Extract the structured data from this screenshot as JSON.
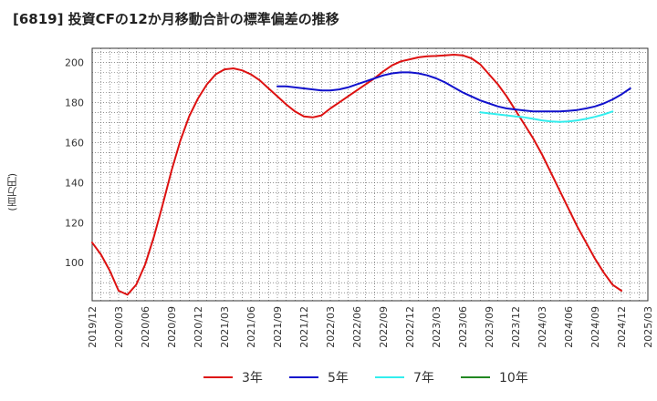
{
  "chart_data": {
    "type": "line",
    "title": "[6819]  投資CFの12か月移動合計の標準偏差の推移",
    "ylabel": "(百万円)",
    "xlabel": "",
    "ylim": [
      81,
      207
    ],
    "yticks": [
      100,
      120,
      140,
      160,
      180,
      200
    ],
    "x_ticks": [
      "2019/12",
      "2020/03",
      "2020/06",
      "2020/09",
      "2020/12",
      "2021/03",
      "2021/06",
      "2021/09",
      "2021/12",
      "2022/03",
      "2022/06",
      "2022/09",
      "2022/12",
      "2023/03",
      "2023/06",
      "2023/09",
      "2023/12",
      "2024/03",
      "2024/06",
      "2024/09",
      "2024/12",
      "2025/03"
    ],
    "grid": true,
    "legend_position": "bottom",
    "series": [
      {
        "name": "3年",
        "color": "#dd1111",
        "start": "2019/12",
        "values": [
          110,
          104,
          96,
          86,
          84,
          89,
          99,
          113,
          129,
          146,
          161,
          173,
          182,
          189,
          194,
          196.5,
          197,
          196,
          194,
          191,
          187,
          183,
          179,
          175.5,
          173,
          172.5,
          173.5,
          177,
          180,
          183,
          186,
          189,
          192,
          195.5,
          198.5,
          200.5,
          201.5,
          202.5,
          203,
          203.2,
          203.5,
          203.8,
          203.5,
          202,
          199,
          194,
          189,
          183,
          176,
          169,
          162,
          154,
          145,
          136,
          127,
          118,
          110,
          102,
          95,
          89,
          86
        ]
      },
      {
        "name": "5年",
        "color": "#1111cc",
        "start": "2021/09",
        "values": [
          188,
          188,
          187.5,
          187,
          186.5,
          186,
          186,
          186.5,
          187.5,
          189,
          190.5,
          192,
          193.5,
          194.5,
          195,
          195,
          194.5,
          193.5,
          192,
          190,
          187.5,
          185,
          183,
          181,
          179.5,
          178,
          177,
          176.5,
          176,
          175.5,
          175.5,
          175.5,
          175.5,
          175.8,
          176.2,
          177,
          178,
          179.5,
          181.5,
          184,
          187
        ]
      },
      {
        "name": "7年",
        "color": "#33eeee",
        "start": "2023/08",
        "values": [
          175,
          174.5,
          174,
          173.5,
          173,
          172.5,
          171.8,
          171,
          170.5,
          170.3,
          170.5,
          171,
          171.8,
          172.8,
          174,
          175.5
        ]
      },
      {
        "name": "10年",
        "color": "#228822",
        "start": "2023/08",
        "values": []
      }
    ]
  }
}
